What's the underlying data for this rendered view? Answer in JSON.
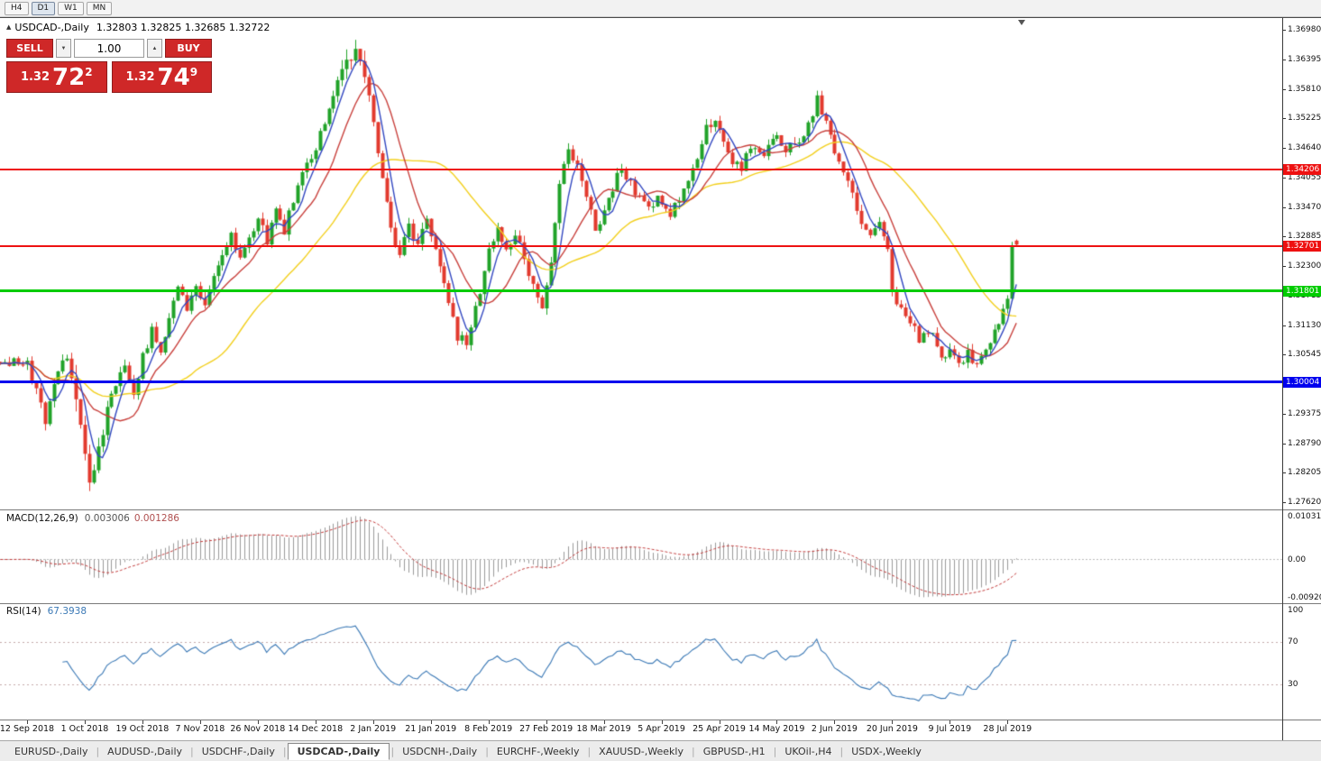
{
  "toolbar": {
    "timeframes": [
      "H4",
      "D1",
      "W1",
      "MN"
    ],
    "active": "D1"
  },
  "chart": {
    "title": "USDCAD-,Daily",
    "ohlc": "1.32803 1.32825 1.32685 1.32722"
  },
  "icons": {
    "collapse_arrow": "▲",
    "spin_up": "▲",
    "spin_down": "▼"
  },
  "trade_panel": {
    "sell_label": "SELL",
    "buy_label": "BUY",
    "volume": "1.00",
    "sell_price": {
      "base": "1.32",
      "big": "72",
      "sup": "2"
    },
    "buy_price": {
      "base": "1.32",
      "big": "74",
      "sup": "9"
    }
  },
  "price_axis": {
    "ticks": [
      "1.36980",
      "1.36395",
      "1.35810",
      "1.35225",
      "1.34640",
      "1.34055",
      "1.33470",
      "1.32885",
      "1.32300",
      "1.31715",
      "1.31130",
      "1.30545",
      "1.29960",
      "1.29375",
      "1.28790",
      "1.28205",
      "1.27620"
    ]
  },
  "hlines": [
    {
      "price": 1.34206,
      "label": "1.34206",
      "color": "#ee1111",
      "thickness": 2
    },
    {
      "price": 1.32701,
      "label": "1.32701",
      "color": "#ee1111",
      "thickness": 2
    },
    {
      "price": 1.31801,
      "label": "1.31801",
      "color": "#00cc00",
      "thickness": 3
    },
    {
      "price": 1.30004,
      "label": "1.30004",
      "color": "#0000ee",
      "thickness": 3
    }
  ],
  "macd_panel": {
    "label": "MACD(12,26,9)",
    "value_main": "0.003006",
    "value_signal": "0.001286",
    "axis_labels": [
      {
        "text": "0.010311",
        "value": 0.010311
      },
      {
        "text": "0.00",
        "value": 0
      },
      {
        "text": "-0.009203",
        "value": -0.009203
      }
    ]
  },
  "rsi_panel": {
    "label": "RSI(14)",
    "value": "67.3938",
    "axis_labels": [
      {
        "text": "100",
        "value": 100
      },
      {
        "text": "70",
        "value": 70
      },
      {
        "text": "30",
        "value": 30
      }
    ],
    "levels": [
      70,
      30
    ]
  },
  "date_axis": {
    "labels": [
      "12 Sep 2018",
      "1 Oct 2018",
      "19 Oct 2018",
      "7 Nov 2018",
      "26 Nov 2018",
      "14 Dec 2018",
      "2 Jan 2019",
      "21 Jan 2019",
      "8 Feb 2019",
      "27 Feb 2019",
      "18 Mar 2019",
      "5 Apr 2019",
      "25 Apr 2019",
      "14 May 2019",
      "2 Jun 2019",
      "20 Jun 2019",
      "9 Jul 2019",
      "28 Jul 2019"
    ],
    "candles_per_tick": 13
  },
  "tabs": [
    "EURUSD-,Daily",
    "AUDUSD-,Daily",
    "USDCHF-,Daily",
    "USDCAD-,Daily",
    "USDCNH-,Daily",
    "EURCHF-,Weekly",
    "XAUUSD-,Weekly",
    "GBPUSD-,H1",
    "UKOil-,H4",
    "USDX-,Weekly"
  ],
  "active_tab": "USDCAD-,Daily",
  "colors": {
    "candle_up": "#21a329",
    "candle_down": "#e23a2e",
    "ma_fast": "#3247c0",
    "ma_mid": "#c8403c",
    "ma_slow": "#f2cf1d",
    "macd_hist": "#9a9a9a",
    "macd_signal": "#c23b3b",
    "rsi_line": "#3a78b5",
    "trade_red": "#cf2828"
  },
  "chart_data": {
    "type": "candlestick",
    "symbol": "USDCAD",
    "timeframe": "Daily",
    "ohlc_current": {
      "open": 1.32803,
      "high": 1.32825,
      "low": 1.32685,
      "close": 1.32722
    },
    "n_candles": 224,
    "ylim": [
      1.2762,
      1.3698
    ],
    "y_tick_step": 0.00585,
    "horizontal_lines": [
      1.34206,
      1.32701,
      1.31801,
      1.30004
    ],
    "moving_averages": [
      {
        "period": 34,
        "color_key": "ma_slow"
      },
      {
        "period": 12,
        "color_key": "ma_mid"
      },
      {
        "period": 5,
        "color_key": "ma_fast"
      }
    ],
    "macd": {
      "fast": 12,
      "slow": 26,
      "signal": 9,
      "current": [
        0.003006,
        0.001286
      ],
      "range": [
        -0.009203,
        0.010311
      ]
    },
    "rsi": {
      "period": 14,
      "current": 67.3938,
      "range": [
        0,
        100
      ],
      "levels": [
        30,
        70
      ]
    },
    "close_path_anchors": [
      [
        0,
        1.304
      ],
      [
        2,
        1.2985
      ],
      [
        4,
        1.2925
      ],
      [
        6,
        1.2995
      ],
      [
        9,
        1.3055
      ],
      [
        11,
        1.2975
      ],
      [
        13,
        1.285
      ],
      [
        14,
        1.28
      ],
      [
        16,
        1.287
      ],
      [
        18,
        1.294
      ],
      [
        20,
        1.2995
      ],
      [
        22,
        1.304
      ],
      [
        24,
        1.2985
      ],
      [
        26,
        1.305
      ],
      [
        28,
        1.3105
      ],
      [
        30,
        1.3062
      ],
      [
        32,
        1.313
      ],
      [
        34,
        1.3185
      ],
      [
        36,
        1.314
      ],
      [
        38,
        1.3195
      ],
      [
        40,
        1.3148
      ],
      [
        42,
        1.32
      ],
      [
        44,
        1.3255
      ],
      [
        46,
        1.329
      ],
      [
        48,
        1.3238
      ],
      [
        50,
        1.329
      ],
      [
        52,
        1.332
      ],
      [
        54,
        1.3282
      ],
      [
        56,
        1.334
      ],
      [
        58,
        1.3302
      ],
      [
        60,
        1.3365
      ],
      [
        62,
        1.341
      ],
      [
        64,
        1.3445
      ],
      [
        66,
        1.349
      ],
      [
        68,
        1.354
      ],
      [
        70,
        1.359
      ],
      [
        72,
        1.363
      ],
      [
        74,
        1.3652
      ],
      [
        76,
        1.36
      ],
      [
        78,
        1.352
      ],
      [
        80,
        1.34
      ],
      [
        82,
        1.3302
      ],
      [
        84,
        1.3255
      ],
      [
        86,
        1.331
      ],
      [
        88,
        1.327
      ],
      [
        90,
        1.3318
      ],
      [
        91,
        1.3282
      ],
      [
        93,
        1.323
      ],
      [
        95,
        1.315
      ],
      [
        97,
        1.3092
      ],
      [
        99,
        1.3075
      ],
      [
        101,
        1.314
      ],
      [
        103,
        1.322
      ],
      [
        104,
        1.3268
      ],
      [
        106,
        1.33
      ],
      [
        108,
        1.3252
      ],
      [
        110,
        1.329
      ],
      [
        112,
        1.3242
      ],
      [
        114,
        1.319
      ],
      [
        116,
        1.3152
      ],
      [
        118,
        1.324
      ],
      [
        120,
        1.339
      ],
      [
        122,
        1.3455
      ],
      [
        124,
        1.3425
      ],
      [
        126,
        1.337
      ],
      [
        128,
        1.331
      ],
      [
        130,
        1.333
      ],
      [
        132,
        1.338
      ],
      [
        134,
        1.343
      ],
      [
        136,
        1.339
      ],
      [
        138,
        1.336
      ],
      [
        140,
        1.334
      ],
      [
        142,
        1.3372
      ],
      [
        143,
        1.3352
      ],
      [
        145,
        1.333
      ],
      [
        147,
        1.3362
      ],
      [
        149,
        1.34
      ],
      [
        151,
        1.344
      ],
      [
        153,
        1.35
      ],
      [
        155,
        1.3515
      ],
      [
        157,
        1.347
      ],
      [
        159,
        1.344
      ],
      [
        161,
        1.3425
      ],
      [
        163,
        1.347
      ],
      [
        165,
        1.3445
      ],
      [
        167,
        1.3465
      ],
      [
        169,
        1.3485
      ],
      [
        171,
        1.3455
      ],
      [
        173,
        1.3472
      ],
      [
        175,
        1.3495
      ],
      [
        177,
        1.3525
      ],
      [
        178,
        1.3558
      ],
      [
        180,
        1.3512
      ],
      [
        182,
        1.3452
      ],
      [
        184,
        1.342
      ],
      [
        186,
        1.337
      ],
      [
        188,
        1.331
      ],
      [
        190,
        1.3282
      ],
      [
        192,
        1.332
      ],
      [
        194,
        1.327
      ],
      [
        195,
        1.319
      ],
      [
        197,
        1.314
      ],
      [
        199,
        1.312
      ],
      [
        201,
        1.3085
      ],
      [
        203,
        1.3105
      ],
      [
        205,
        1.3068
      ],
      [
        207,
        1.3048
      ],
      [
        208,
        1.3075
      ],
      [
        210,
        1.304
      ],
      [
        212,
        1.3058
      ],
      [
        214,
        1.3032
      ],
      [
        216,
        1.306
      ],
      [
        218,
        1.3095
      ],
      [
        220,
        1.3135
      ],
      [
        221,
        1.3165
      ],
      [
        222,
        1.3278
      ],
      [
        223,
        1.3272
      ]
    ]
  }
}
